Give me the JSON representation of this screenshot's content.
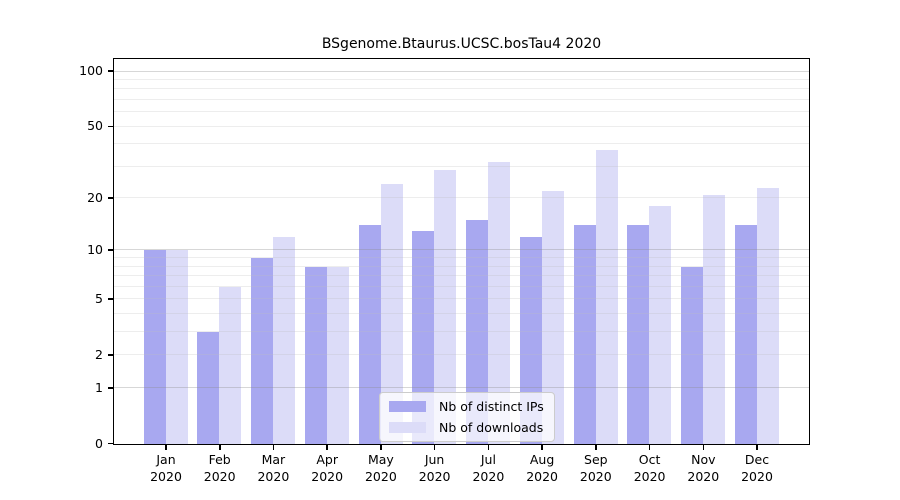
{
  "title": "BSgenome.Btaurus.UCSC.bosTau4 2020",
  "chart_data": {
    "type": "bar",
    "title": "BSgenome.Btaurus.UCSC.bosTau4 2020",
    "categories": [
      "Jan",
      "Feb",
      "Mar",
      "Apr",
      "May",
      "Jun",
      "Jul",
      "Aug",
      "Sep",
      "Oct",
      "Nov",
      "Dec"
    ],
    "category_year": "2020",
    "series": [
      {
        "name": "Nb of distinct IPs",
        "color": "#a8a8f0",
        "values": [
          10,
          3,
          9,
          8,
          14,
          13,
          15,
          12,
          14,
          14,
          8,
          14
        ]
      },
      {
        "name": "Nb of downloads",
        "color": "#dcdcf8",
        "values": [
          10,
          6,
          12,
          8,
          24,
          29,
          32,
          22,
          37,
          18,
          21,
          23
        ]
      }
    ],
    "yscale": "log1p",
    "ylim": [
      0,
      116
    ],
    "ytick_labels": [
      0,
      1,
      2,
      5,
      10,
      20,
      50,
      100
    ],
    "major_gridlines": [
      1,
      10,
      100
    ],
    "minor_gridlines": [
      2,
      3,
      4,
      5,
      6,
      7,
      8,
      9,
      20,
      30,
      40,
      50,
      60,
      70,
      80,
      90
    ],
    "grid": true,
    "legend_position": "inside-bottom-center",
    "colors": {
      "axis": "#000000",
      "background": "#ffffff",
      "major_grid": "#d6d6d6",
      "minor_grid": "#ececec",
      "legend_border": "#cccccc"
    }
  }
}
